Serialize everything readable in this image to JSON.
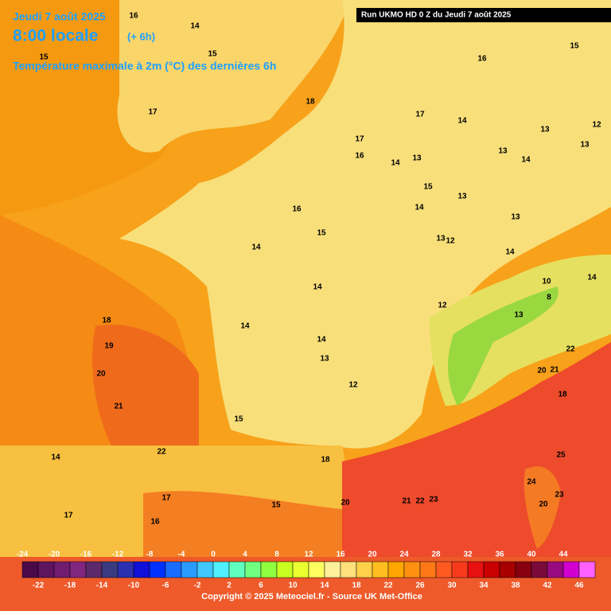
{
  "header": {
    "date": "Jeudi 7 août 2025",
    "time": "8:00 locale",
    "offset": "(+ 6h)",
    "subtitle": "Température maximale à 2m (°C) des dernières 6h",
    "run": "Run UKMO HD 0 Z du Jeudi 7 août 2025"
  },
  "map_labels": [
    16,
    14,
    15,
    15,
    16,
    15,
    18,
    17,
    17,
    14,
    13,
    12,
    17,
    16,
    13,
    14,
    13,
    14,
    13,
    15,
    13,
    14,
    16,
    13,
    15,
    13,
    12,
    14,
    14,
    14,
    10,
    14,
    8,
    12,
    13,
    18,
    14,
    19,
    14,
    22,
    13,
    20,
    20,
    21,
    18,
    12,
    21,
    15,
    22,
    14,
    25,
    18,
    17,
    24,
    21,
    22,
    23,
    20,
    23,
    20,
    17,
    16,
    15
  ],
  "colorbar": {
    "ticks": [
      -24,
      -22,
      -20,
      -18,
      -16,
      -14,
      -12,
      -10,
      -8,
      -6,
      -4,
      -2,
      0,
      2,
      4,
      6,
      8,
      10,
      12,
      14,
      16,
      18,
      20,
      22,
      24,
      26,
      28,
      30,
      32,
      34,
      36,
      38,
      40,
      42,
      44,
      46
    ],
    "colors": [
      "#4a0a4a",
      "#5e145e",
      "#701c70",
      "#802680",
      "#5c2a6a",
      "#3a3a80",
      "#2a30b0",
      "#1010d8",
      "#0030ff",
      "#1a6cff",
      "#2a9cff",
      "#40c8ff",
      "#50f0ff",
      "#60ffc0",
      "#70ff80",
      "#90ff40",
      "#c8ff20",
      "#eaff30",
      "#ffff60",
      "#fff09a",
      "#ffe07a",
      "#ffd04a",
      "#ffbe20",
      "#ffa600",
      "#ff9010",
      "#ff7818",
      "#ff5a20",
      "#f83a1c",
      "#e81010",
      "#c80000",
      "#a80000",
      "#880010",
      "#7a0a3a",
      "#980a80",
      "#d000d0",
      "#ff60ff"
    ]
  },
  "footer": {
    "copyright": "Copyright © 2025 Meteociel.fr - Source UK Met-Office"
  }
}
